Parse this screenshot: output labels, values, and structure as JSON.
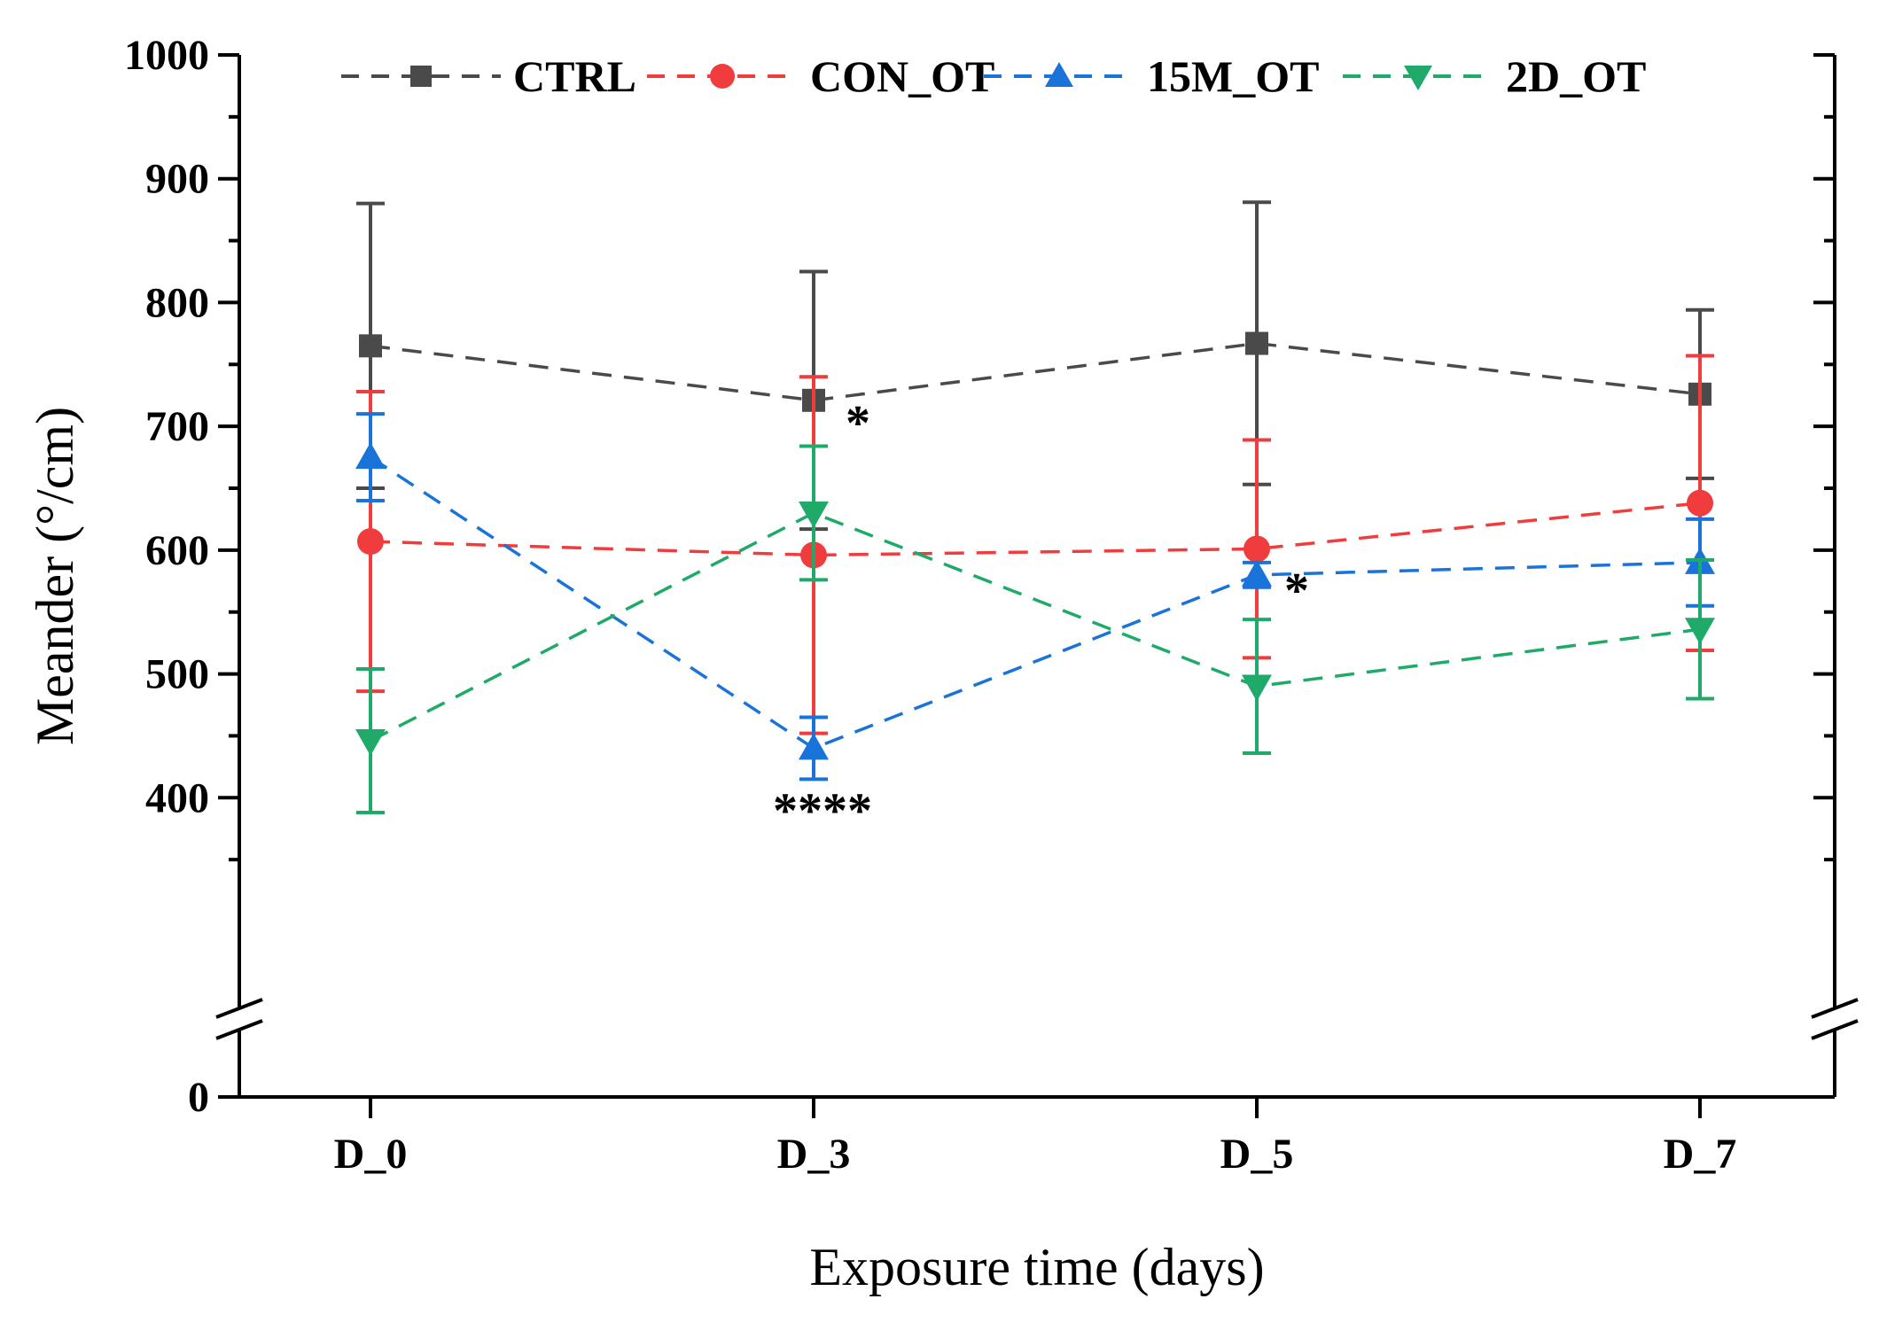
{
  "chart_data": {
    "type": "line",
    "xlabel": "Exposure time (days)",
    "ylabel": "Meander (°/cm)",
    "categories": [
      "D_0",
      "D_3",
      "D_5",
      "D_7"
    ],
    "y_ticks": [
      "0",
      "400",
      "500",
      "600",
      "700",
      "800",
      "900",
      "1000"
    ],
    "y_axis_break": true,
    "ylim": [
      0,
      1000
    ],
    "grid": false,
    "legend_position": "top",
    "series": [
      {
        "name": "CTRL",
        "color": "#4a4a4a",
        "marker": "square",
        "values": [
          765,
          721,
          767,
          726
        ],
        "error": [
          115,
          104,
          114,
          68
        ]
      },
      {
        "name": "CON_OT",
        "color": "#f03c3c",
        "marker": "circle",
        "values": [
          607,
          596,
          601,
          638
        ],
        "error": [
          121,
          144,
          88,
          119
        ]
      },
      {
        "name": "15M_OT",
        "color": "#1a73d9",
        "marker": "triangle-up",
        "values": [
          675,
          440,
          580,
          590
        ],
        "error": [
          35,
          25,
          10,
          35
        ]
      },
      {
        "name": "2D_OT",
        "color": "#1faa6a",
        "marker": "triangle-down",
        "values": [
          446,
          630,
          490,
          536
        ],
        "error": [
          58,
          54,
          54,
          56
        ]
      }
    ],
    "annotations": [
      {
        "text": "*",
        "x": "D_3",
        "y": 705
      },
      {
        "text": "****",
        "x": "D_3",
        "y": 392
      },
      {
        "text": "*",
        "x": "D_5",
        "y": 570
      }
    ]
  }
}
